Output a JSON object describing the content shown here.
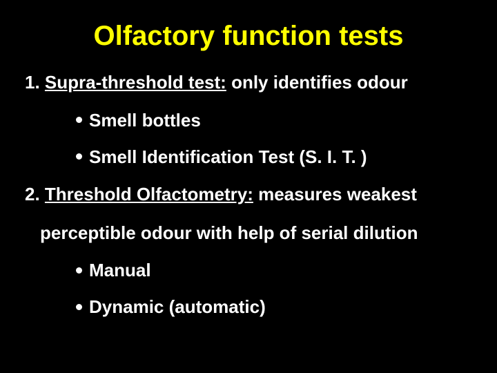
{
  "slide": {
    "background_color": "#000000",
    "title": {
      "text": "Olfactory function tests",
      "color": "#ffff00",
      "fontsize": 40,
      "font_weight": "bold"
    },
    "body_text_color": "#ffffff",
    "body_fontsize": 26,
    "sections": [
      {
        "heading_prefix": "1. ",
        "heading": "Supra-threshold test:",
        "heading_suffix": " only identifies odour",
        "bullets": [
          "Smell bottles",
          "Smell Identification Test (S. I. T. )"
        ]
      },
      {
        "heading_prefix": "2. ",
        "heading": "Threshold Olfactometry:",
        "heading_suffix": " measures weakest",
        "continuation": "perceptible odour with help of serial dilution",
        "bullets": [
          "Manual",
          "Dynamic (automatic)"
        ]
      }
    ]
  }
}
